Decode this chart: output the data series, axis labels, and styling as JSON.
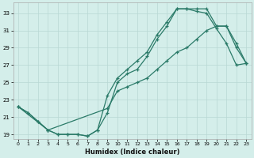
{
  "xlabel": "Humidex (Indice chaleur)",
  "bg_color": "#d4eeea",
  "grid_color": "#b8d8d4",
  "line_color": "#2a7a68",
  "xlim": [
    -0.5,
    23.5
  ],
  "ylim": [
    18.5,
    34.2
  ],
  "xticks": [
    0,
    1,
    2,
    3,
    4,
    5,
    6,
    7,
    8,
    9,
    10,
    11,
    12,
    13,
    14,
    15,
    16,
    17,
    18,
    19,
    20,
    21,
    22,
    23
  ],
  "yticks": [
    19,
    21,
    23,
    25,
    27,
    29,
    31,
    33
  ],
  "line1_x": [
    0,
    1,
    2,
    3,
    4,
    5,
    6,
    7,
    8,
    9,
    10,
    11,
    12,
    13,
    14,
    15,
    16,
    17,
    18,
    19,
    20,
    21,
    22,
    23
  ],
  "line1_y": [
    22.2,
    21.5,
    20.5,
    19.5,
    19.0,
    19.0,
    19.0,
    18.8,
    19.5,
    23.5,
    25.5,
    26.5,
    27.5,
    28.5,
    30.5,
    32.0,
    33.5,
    33.5,
    33.5,
    33.5,
    31.5,
    31.5,
    29.5,
    27.2
  ],
  "line2_x": [
    0,
    1,
    2,
    3,
    4,
    5,
    6,
    7,
    8,
    9,
    10,
    11,
    12,
    13,
    14,
    15,
    16,
    17,
    18,
    19,
    20,
    21,
    22,
    23
  ],
  "line2_y": [
    22.2,
    21.5,
    20.5,
    19.5,
    19.0,
    19.0,
    19.0,
    18.8,
    19.5,
    21.5,
    25.0,
    26.0,
    26.5,
    28.0,
    30.0,
    31.5,
    33.5,
    33.5,
    33.2,
    33.0,
    31.2,
    29.5,
    27.0,
    27.2
  ],
  "line3_x": [
    0,
    3,
    9,
    10,
    11,
    12,
    13,
    14,
    15,
    16,
    17,
    18,
    19,
    20,
    21,
    22,
    23
  ],
  "line3_y": [
    22.2,
    19.5,
    22.0,
    24.0,
    24.5,
    25.0,
    25.5,
    26.5,
    27.5,
    28.5,
    29.0,
    30.0,
    31.0,
    31.5,
    31.5,
    29.0,
    27.2
  ]
}
